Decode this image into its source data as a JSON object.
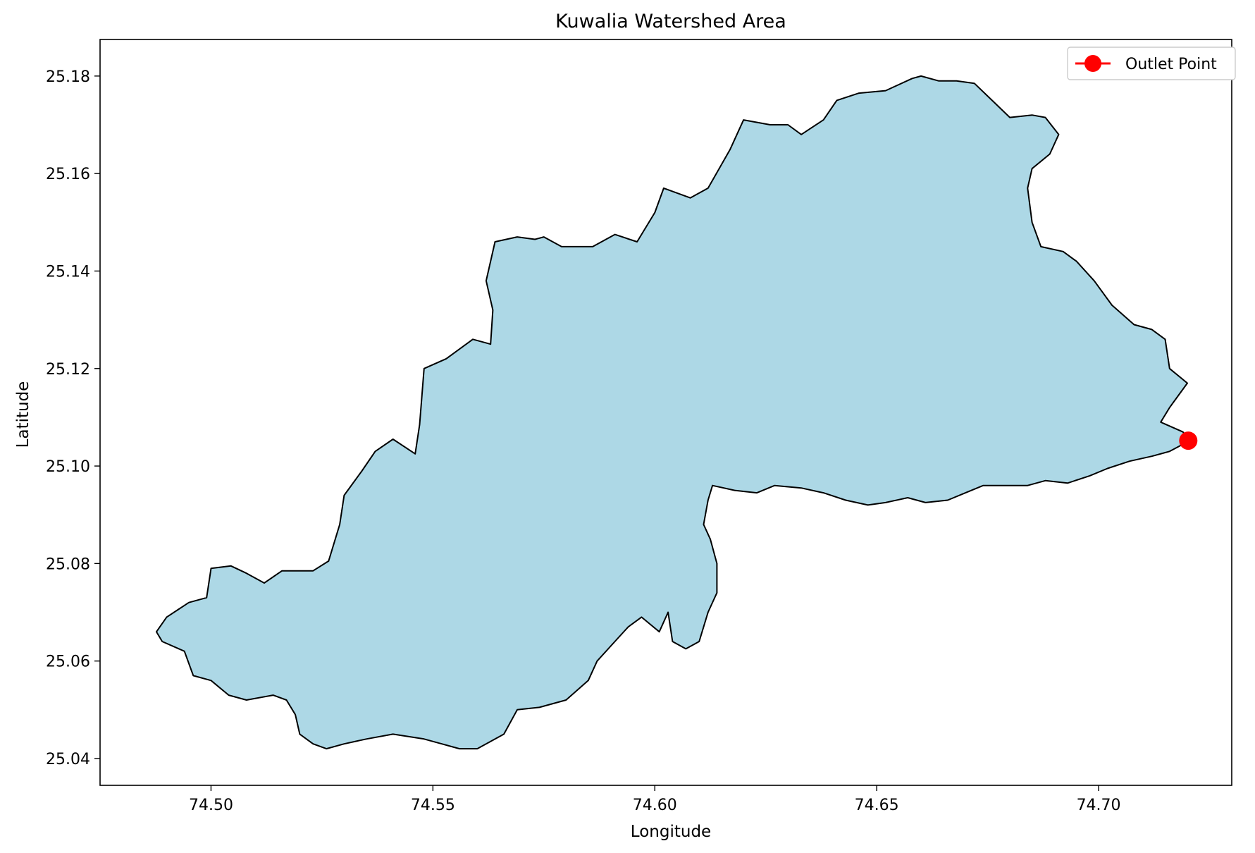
{
  "chart_data": {
    "type": "map",
    "title": "Kuwalia Watershed Area",
    "xlabel": "Longitude",
    "ylabel": "Latitude",
    "xlim": [
      74.475,
      74.73
    ],
    "ylim": [
      25.0345,
      25.1875
    ],
    "xticks": [
      74.5,
      74.55,
      74.6,
      74.65,
      74.7
    ],
    "yticks": [
      25.04,
      25.06,
      25.08,
      25.1,
      25.12,
      25.14,
      25.16,
      25.18
    ],
    "x_tick_labels": [
      "74.50",
      "74.55",
      "74.60",
      "74.65",
      "74.70"
    ],
    "y_tick_labels": [
      "25.04",
      "25.06",
      "25.08",
      "25.10",
      "25.12",
      "25.14",
      "25.16",
      "25.18"
    ],
    "grid": false,
    "legend_position": "top-right",
    "fill_color": "#add8e6",
    "edge_color": "#000000",
    "outlet_color": "#ff0000",
    "legend": [
      {
        "label": "Outlet Point",
        "marker": "circle",
        "color": "#ff0000"
      }
    ],
    "outlet_point": {
      "lon": 74.7202,
      "lat": 25.1052
    },
    "watershed_boundary": [
      [
        74.4877,
        25.066
      ],
      [
        74.49,
        25.069
      ],
      [
        74.495,
        25.072
      ],
      [
        74.499,
        25.073
      ],
      [
        74.5,
        25.079
      ],
      [
        74.5045,
        25.0795
      ],
      [
        74.508,
        25.078
      ],
      [
        74.512,
        25.076
      ],
      [
        74.516,
        25.0785
      ],
      [
        74.523,
        25.0785
      ],
      [
        74.5265,
        25.0805
      ],
      [
        74.529,
        25.088
      ],
      [
        74.53,
        25.094
      ],
      [
        74.534,
        25.099
      ],
      [
        74.537,
        25.103
      ],
      [
        74.541,
        25.1055
      ],
      [
        74.546,
        25.1025
      ],
      [
        74.547,
        25.1085
      ],
      [
        74.548,
        25.12
      ],
      [
        74.553,
        25.122
      ],
      [
        74.559,
        25.126
      ],
      [
        74.563,
        25.125
      ],
      [
        74.5635,
        25.132
      ],
      [
        74.562,
        25.138
      ],
      [
        74.564,
        25.146
      ],
      [
        74.569,
        25.147
      ],
      [
        74.573,
        25.1465
      ],
      [
        74.575,
        25.147
      ],
      [
        74.579,
        25.145
      ],
      [
        74.582,
        25.145
      ],
      [
        74.586,
        25.145
      ],
      [
        74.591,
        25.1475
      ],
      [
        74.596,
        25.146
      ],
      [
        74.6,
        25.152
      ],
      [
        74.602,
        25.157
      ],
      [
        74.608,
        25.155
      ],
      [
        74.612,
        25.157
      ],
      [
        74.617,
        25.165
      ],
      [
        74.62,
        25.171
      ],
      [
        74.626,
        25.17
      ],
      [
        74.63,
        25.17
      ],
      [
        74.633,
        25.168
      ],
      [
        74.638,
        25.171
      ],
      [
        74.641,
        25.175
      ],
      [
        74.646,
        25.1765
      ],
      [
        74.652,
        25.177
      ],
      [
        74.658,
        25.1795
      ],
      [
        74.66,
        25.18
      ],
      [
        74.664,
        25.179
      ],
      [
        74.668,
        25.179
      ],
      [
        74.672,
        25.1785
      ],
      [
        74.676,
        25.175
      ],
      [
        74.68,
        25.1715
      ],
      [
        74.685,
        25.172
      ],
      [
        74.688,
        25.1715
      ],
      [
        74.691,
        25.168
      ],
      [
        74.689,
        25.164
      ],
      [
        74.685,
        25.161
      ],
      [
        74.684,
        25.157
      ],
      [
        74.685,
        25.15
      ],
      [
        74.687,
        25.145
      ],
      [
        74.692,
        25.144
      ],
      [
        74.695,
        25.142
      ],
      [
        74.699,
        25.138
      ],
      [
        74.703,
        25.133
      ],
      [
        74.708,
        25.129
      ],
      [
        74.712,
        25.128
      ],
      [
        74.715,
        25.126
      ],
      [
        74.716,
        25.12
      ],
      [
        74.72,
        25.117
      ],
      [
        74.716,
        25.112
      ],
      [
        74.714,
        25.109
      ],
      [
        74.719,
        25.107
      ],
      [
        74.7205,
        25.1052
      ],
      [
        74.716,
        25.103
      ],
      [
        74.712,
        25.102
      ],
      [
        74.707,
        25.101
      ],
      [
        74.702,
        25.0995
      ],
      [
        74.698,
        25.098
      ],
      [
        74.693,
        25.0965
      ],
      [
        74.688,
        25.097
      ],
      [
        74.684,
        25.096
      ],
      [
        74.679,
        25.096
      ],
      [
        74.674,
        25.096
      ],
      [
        74.67,
        25.0945
      ],
      [
        74.666,
        25.093
      ],
      [
        74.661,
        25.0925
      ],
      [
        74.657,
        25.0935
      ],
      [
        74.652,
        25.0925
      ],
      [
        74.648,
        25.092
      ],
      [
        74.643,
        25.093
      ],
      [
        74.638,
        25.0945
      ],
      [
        74.633,
        25.0955
      ],
      [
        74.627,
        25.096
      ],
      [
        74.623,
        25.0945
      ],
      [
        74.618,
        25.095
      ],
      [
        74.613,
        25.096
      ],
      [
        74.612,
        25.093
      ],
      [
        74.611,
        25.088
      ],
      [
        74.6125,
        25.085
      ],
      [
        74.614,
        25.08
      ],
      [
        74.614,
        25.074
      ],
      [
        74.612,
        25.07
      ],
      [
        74.61,
        25.064
      ],
      [
        74.607,
        25.0625
      ],
      [
        74.604,
        25.064
      ],
      [
        74.603,
        25.07
      ],
      [
        74.601,
        25.066
      ],
      [
        74.597,
        25.069
      ],
      [
        74.594,
        25.067
      ],
      [
        74.591,
        25.064
      ],
      [
        74.587,
        25.06
      ],
      [
        74.585,
        25.056
      ],
      [
        74.58,
        25.052
      ],
      [
        74.574,
        25.0505
      ],
      [
        74.569,
        25.05
      ],
      [
        74.566,
        25.045
      ],
      [
        74.56,
        25.042
      ],
      [
        74.556,
        25.042
      ],
      [
        74.552,
        25.043
      ],
      [
        74.548,
        25.044
      ],
      [
        74.541,
        25.045
      ],
      [
        74.535,
        25.044
      ],
      [
        74.53,
        25.043
      ],
      [
        74.526,
        25.042
      ],
      [
        74.523,
        25.043
      ],
      [
        74.52,
        25.045
      ],
      [
        74.519,
        25.049
      ],
      [
        74.517,
        25.052
      ],
      [
        74.514,
        25.053
      ],
      [
        74.508,
        25.052
      ],
      [
        74.504,
        25.053
      ],
      [
        74.5,
        25.056
      ],
      [
        74.496,
        25.057
      ],
      [
        74.494,
        25.062
      ],
      [
        74.489,
        25.064
      ],
      [
        74.4877,
        25.066
      ]
    ]
  }
}
